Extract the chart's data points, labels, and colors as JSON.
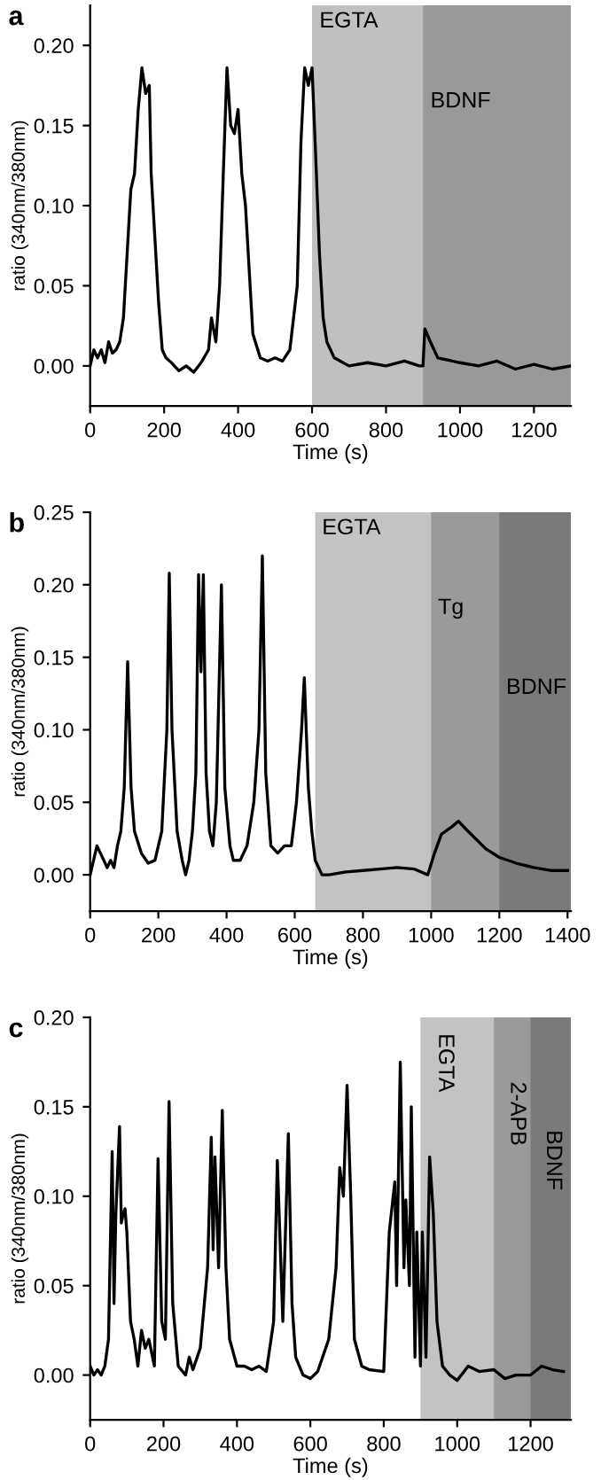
{
  "chart_data": [
    {
      "type": "line",
      "title": "a",
      "xlabel": "Time (s)",
      "ylabel": "ratio (340nm/380nm)",
      "xlim": [
        0,
        1300
      ],
      "ylim": [
        -0.025,
        0.225
      ],
      "xticks": [
        0,
        200,
        400,
        600,
        800,
        1000,
        1200
      ],
      "yticks": [
        {
          "value": 0,
          "label": "0.00"
        },
        0.05,
        {
          "value": 0.1,
          "label": "0.10"
        },
        0.15,
        {
          "value": 0.2,
          "label": "0.20"
        }
      ],
      "grid": false,
      "legend": false,
      "bands": [
        {
          "axis": "x",
          "from": 600,
          "to": 1300,
          "label": "EGTA",
          "color": "#c0c0c0"
        },
        {
          "axis": "x",
          "from": 900,
          "to": 1300,
          "label": "BDNF",
          "color": "#999999"
        }
      ],
      "series": [
        {
          "color": "#000000",
          "x": [
            0,
            10,
            20,
            30,
            40,
            50,
            60,
            70,
            80,
            90,
            100,
            110,
            120,
            130,
            140,
            150,
            160,
            165,
            175,
            185,
            195,
            205,
            220,
            240,
            260,
            280,
            300,
            320,
            328,
            340,
            350,
            360,
            370,
            380,
            390,
            400,
            410,
            420,
            430,
            440,
            460,
            480,
            500,
            520,
            540,
            560,
            570,
            580,
            590,
            600,
            610,
            620,
            630,
            640,
            660,
            700,
            750,
            800,
            850,
            890,
            900,
            905,
            920,
            940,
            1000,
            1050,
            1100,
            1150,
            1200,
            1250,
            1300
          ],
          "values": [
            0.0,
            0.01,
            0.005,
            0.01,
            0.002,
            0.015,
            0.008,
            0.01,
            0.015,
            0.03,
            0.07,
            0.11,
            0.12,
            0.16,
            0.186,
            0.17,
            0.175,
            0.12,
            0.08,
            0.04,
            0.01,
            0.005,
            0.002,
            -0.003,
            0.0,
            -0.004,
            0.002,
            0.01,
            0.03,
            0.015,
            0.05,
            0.12,
            0.186,
            0.15,
            0.145,
            0.16,
            0.12,
            0.1,
            0.06,
            0.02,
            0.005,
            0.003,
            0.005,
            0.003,
            0.01,
            0.05,
            0.14,
            0.186,
            0.175,
            0.186,
            0.13,
            0.07,
            0.03,
            0.015,
            0.005,
            0.0,
            0.002,
            0.0,
            0.003,
            0.0,
            0.0,
            0.023,
            0.015,
            0.005,
            0.002,
            0.0,
            0.003,
            -0.002,
            0.001,
            -0.002,
            0.0
          ]
        }
      ]
    },
    {
      "type": "line",
      "title": "b",
      "xlabel": "Time (s)",
      "ylabel": "ratio (340nm/380nm)",
      "xlim": [
        0,
        1410
      ],
      "ylim": [
        -0.025,
        0.25
      ],
      "xticks": [
        0,
        200,
        400,
        600,
        800,
        1000,
        1200,
        1400
      ],
      "yticks": [
        {
          "value": 0,
          "label": "0.00"
        },
        0.05,
        {
          "value": 0.1,
          "label": "0.10"
        },
        0.15,
        {
          "value": 0.2,
          "label": "0.20"
        },
        0.25
      ],
      "grid": false,
      "legend": false,
      "bands": [
        {
          "axis": "x",
          "from": 660,
          "to": 1410,
          "label": "EGTA",
          "color": "#c3c3c3"
        },
        {
          "axis": "x",
          "from": 1000,
          "to": 1410,
          "label": "Tg",
          "color": "#9a9a9a"
        },
        {
          "axis": "x",
          "from": 1200,
          "to": 1410,
          "label": "BDNF",
          "color": "#7a7a7a"
        }
      ],
      "series": [
        {
          "color": "#000000",
          "x": [
            0,
            10,
            20,
            30,
            40,
            50,
            60,
            70,
            80,
            90,
            100,
            110,
            120,
            130,
            150,
            170,
            190,
            210,
            225,
            232,
            240,
            255,
            270,
            280,
            290,
            300,
            310,
            318,
            325,
            332,
            340,
            350,
            360,
            370,
            385,
            395,
            410,
            420,
            440,
            460,
            480,
            495,
            505,
            515,
            530,
            550,
            570,
            590,
            605,
            620,
            628,
            640,
            650,
            660,
            680,
            700,
            750,
            800,
            850,
            900,
            950,
            990,
            1010,
            1030,
            1060,
            1080,
            1100,
            1130,
            1160,
            1200,
            1250,
            1300,
            1350,
            1400
          ],
          "values": [
            0.0,
            0.01,
            0.02,
            0.015,
            0.01,
            0.005,
            0.01,
            0.005,
            0.02,
            0.03,
            0.06,
            0.147,
            0.06,
            0.03,
            0.015,
            0.008,
            0.01,
            0.03,
            0.1,
            0.208,
            0.1,
            0.03,
            0.01,
            0.0,
            0.01,
            0.03,
            0.07,
            0.207,
            0.14,
            0.207,
            0.07,
            0.03,
            0.02,
            0.05,
            0.2,
            0.06,
            0.02,
            0.01,
            0.01,
            0.02,
            0.05,
            0.1,
            0.22,
            0.07,
            0.02,
            0.015,
            0.02,
            0.02,
            0.05,
            0.1,
            0.136,
            0.06,
            0.03,
            0.01,
            0.0,
            0.0,
            0.002,
            0.003,
            0.004,
            0.005,
            0.004,
            0.0,
            0.015,
            0.028,
            0.033,
            0.037,
            0.032,
            0.025,
            0.018,
            0.012,
            0.008,
            0.005,
            0.003,
            0.003
          ]
        }
      ]
    },
    {
      "type": "line",
      "title": "c",
      "xlabel": "Time (s)",
      "ylabel": "ratio (340nm/380nm)",
      "xlim": [
        0,
        1310
      ],
      "ylim": [
        -0.025,
        0.2
      ],
      "xticks": [
        0,
        200,
        400,
        600,
        800,
        1000,
        1200
      ],
      "yticks": [
        {
          "value": 0,
          "label": "0.00"
        },
        0.05,
        {
          "value": 0.1,
          "label": "0.10"
        },
        0.15,
        {
          "value": 0.2,
          "label": "0.20"
        }
      ],
      "grid": false,
      "legend": false,
      "bands": [
        {
          "axis": "x",
          "from": 900,
          "to": 1310,
          "label": "EGTA",
          "color": "#c3c3c3"
        },
        {
          "axis": "x",
          "from": 1100,
          "to": 1310,
          "label": "2-APB",
          "color": "#9a9a9a"
        },
        {
          "axis": "x",
          "from": 1200,
          "to": 1310,
          "label": "BDNF",
          "color": "#7a7a7a"
        }
      ],
      "series": [
        {
          "color": "#000000",
          "x": [
            0,
            10,
            20,
            30,
            40,
            50,
            60,
            65,
            70,
            80,
            85,
            90,
            95,
            100,
            110,
            120,
            130,
            140,
            150,
            160,
            170,
            175,
            185,
            195,
            205,
            215,
            225,
            240,
            260,
            270,
            280,
            300,
            320,
            330,
            335,
            340,
            350,
            360,
            370,
            380,
            400,
            420,
            440,
            460,
            480,
            500,
            510,
            525,
            540,
            550,
            560,
            580,
            600,
            620,
            650,
            670,
            680,
            690,
            700,
            710,
            720,
            740,
            760,
            800,
            815,
            830,
            835,
            845,
            855,
            860,
            870,
            875,
            885,
            890,
            900,
            905,
            915,
            925,
            935,
            945,
            960,
            980,
            1000,
            1030,
            1060,
            1100,
            1130,
            1160,
            1200,
            1230,
            1260,
            1290
          ],
          "values": [
            0.005,
            0.0,
            0.003,
            0.0,
            0.005,
            0.02,
            0.125,
            0.04,
            0.09,
            0.139,
            0.085,
            0.09,
            0.093,
            0.08,
            0.03,
            0.02,
            0.005,
            0.025,
            0.015,
            0.02,
            0.01,
            0.005,
            0.121,
            0.03,
            0.02,
            0.153,
            0.04,
            0.005,
            0.0,
            0.01,
            0.003,
            0.015,
            0.06,
            0.133,
            0.07,
            0.122,
            0.06,
            0.148,
            0.06,
            0.02,
            0.005,
            0.005,
            0.003,
            0.005,
            0.002,
            0.03,
            0.12,
            0.03,
            0.135,
            0.04,
            0.01,
            0.0,
            -0.002,
            0.002,
            0.02,
            0.06,
            0.116,
            0.1,
            0.162,
            0.1,
            0.02,
            0.005,
            0.003,
            0.002,
            0.08,
            0.108,
            0.05,
            0.175,
            0.06,
            0.098,
            0.05,
            0.15,
            0.01,
            0.08,
            0.005,
            0.08,
            0.01,
            0.122,
            0.09,
            0.03,
            0.005,
            0.0,
            -0.003,
            0.005,
            0.002,
            0.003,
            -0.002,
            0.0,
            0.0,
            0.005,
            0.003,
            0.002
          ]
        }
      ]
    }
  ]
}
